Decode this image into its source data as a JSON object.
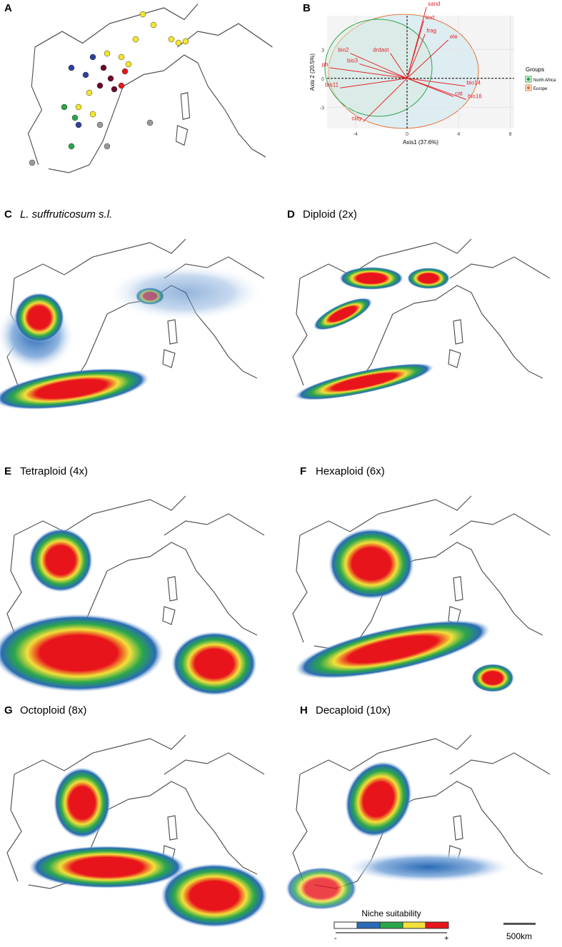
{
  "panels": {
    "a": {
      "letter": "A"
    },
    "b": {
      "letter": "B",
      "pca": {
        "x_label": "Axis1 (37.6%)",
        "y_label": "Axis 2 (20.5%)",
        "xlim": [
          -6.2,
          8.3
        ],
        "ylim": [
          -5.2,
          6.5
        ],
        "xticks": [
          -4,
          0,
          4,
          8
        ],
        "yticks": [
          3,
          0,
          -3
        ],
        "vectors": [
          {
            "name": "sand",
            "x": 1.5,
            "y": 7.4
          },
          {
            "name": "text",
            "x": 1.3,
            "y": 6.0
          },
          {
            "name": "frag",
            "x": 1.4,
            "y": 4.6
          },
          {
            "name": "ele",
            "x": 3.2,
            "y": 4.0
          },
          {
            "name": "bio2",
            "x": -4.4,
            "y": 2.6
          },
          {
            "name": "drdast",
            "x": -1.3,
            "y": 2.6
          },
          {
            "name": "bio3",
            "x": -3.7,
            "y": 1.5
          },
          {
            "name": "ph",
            "x": -6.0,
            "y": 1.1
          },
          {
            "name": "bio11",
            "x": -5.2,
            "y": -1.0
          },
          {
            "name": "bio14",
            "x": 4.5,
            "y": -0.8
          },
          {
            "name": "cat",
            "x": 3.6,
            "y": -1.9
          },
          {
            "name": "bio16",
            "x": 4.6,
            "y": -2.2
          },
          {
            "name": "clay",
            "x": -3.4,
            "y": -4.5
          }
        ],
        "legend": {
          "title": "Groups",
          "items": [
            "North Africa",
            "Europe"
          ]
        }
      }
    },
    "c": {
      "letter": "C",
      "title": "L. suffruticosum s.l."
    },
    "d": {
      "letter": "D",
      "title": "Diploid (2x)"
    },
    "e": {
      "letter": "E",
      "title": "Tetraploid (4x)"
    },
    "f": {
      "letter": "F",
      "title": "Hexaploid (6x)"
    },
    "g": {
      "letter": "G",
      "title": "Octoploid (8x)"
    },
    "h": {
      "letter": "H",
      "title": "Decaploid (10x)"
    }
  },
  "legend": {
    "title": "Niche suitability",
    "low": "-",
    "high": "+",
    "scale_bar": "500km"
  }
}
